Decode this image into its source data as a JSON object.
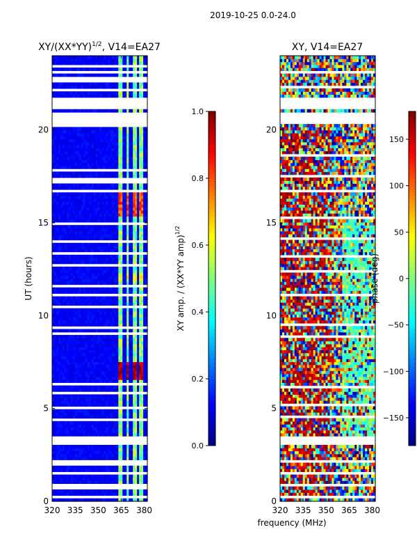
{
  "suptitle": "2019-10-25 0.0-24.0",
  "colors": {
    "jet": [
      "#00007f",
      "#0000ff",
      "#007fff",
      "#00ffff",
      "#7fff7f",
      "#ffff00",
      "#ff7f00",
      "#ff0000",
      "#7f0000"
    ],
    "gap": "#ffffff",
    "axis": "#000000"
  },
  "chart_data": [
    {
      "type": "heatmap",
      "title_main": "XY/(XX*YY)",
      "title_sup": "1/2",
      "title_tail": ", V14=EA27",
      "xlabel": "frequency (MHz)",
      "ylabel": "UT (hours)",
      "xlim": [
        320,
        382
      ],
      "ylim": [
        0,
        24
      ],
      "xticks": [
        "320",
        "335",
        "350",
        "365",
        "380"
      ],
      "xtick_values": [
        320,
        335,
        350,
        365,
        380
      ],
      "yticks": [
        "0",
        "5",
        "10",
        "15",
        "20"
      ],
      "ytick_values": [
        0,
        5,
        10,
        15,
        20
      ],
      "value_range": [
        0,
        1
      ],
      "background_value": 0.12,
      "bright_bands_mhz": [
        [
          363,
          366
        ],
        [
          368,
          370
        ],
        [
          373,
          375
        ],
        [
          377,
          379
        ]
      ],
      "bright_band_value": 0.5,
      "hot_blocks": [
        {
          "ut": [
            6.6,
            7.5
          ],
          "mhz": [
            363,
            380
          ],
          "value": 0.95
        },
        {
          "ut": [
            15.3,
            16.6
          ],
          "mhz": [
            363,
            380
          ],
          "value": 0.8
        },
        {
          "ut": [
            11.8,
            12.3
          ],
          "mhz": [
            363,
            380
          ],
          "value": 0.62
        }
      ],
      "gap_intervals_ut": [
        [
          0.1,
          0.3
        ],
        [
          0.7,
          0.9
        ],
        [
          1.4,
          1.55
        ],
        [
          2.0,
          2.2
        ],
        [
          3.0,
          3.5
        ],
        [
          4.4,
          4.55
        ],
        [
          5.0,
          5.1
        ],
        [
          5.7,
          5.85
        ],
        [
          6.3,
          6.45
        ],
        [
          8.9,
          9.1
        ],
        [
          9.3,
          9.5
        ],
        [
          10.4,
          10.55
        ],
        [
          11.0,
          11.2
        ],
        [
          11.6,
          11.75
        ],
        [
          12.7,
          12.85
        ],
        [
          13.3,
          13.5
        ],
        [
          14.0,
          14.1
        ],
        [
          14.9,
          15.0
        ],
        [
          16.6,
          16.8
        ],
        [
          17.2,
          17.4
        ],
        [
          17.8,
          17.95
        ],
        [
          18.2,
          18.3
        ],
        [
          20.1,
          21.0
        ],
        [
          21.2,
          21.8
        ],
        [
          22.1,
          22.25
        ],
        [
          22.6,
          22.8
        ],
        [
          23.0,
          23.15
        ],
        [
          23.4,
          23.55
        ]
      ],
      "colorbar": {
        "label_main": "XY amp. / (XX*YY amp)",
        "label_sup": "1/2",
        "ticks": [
          "0.0",
          "0.2",
          "0.4",
          "0.6",
          "0.8",
          "1.0"
        ],
        "tick_values": [
          0,
          0.2,
          0.4,
          0.6,
          0.8,
          1.0
        ]
      }
    },
    {
      "type": "heatmap",
      "title_main": "XY, V14=EA27",
      "xlabel": "frequency (MHz)",
      "ylabel": "",
      "xlim": [
        320,
        382
      ],
      "ylim": [
        0,
        24
      ],
      "xticks": [
        "320",
        "335",
        "350",
        "365",
        "380"
      ],
      "xtick_values": [
        320,
        335,
        350,
        365,
        380
      ],
      "yticks": [
        "0",
        "5",
        "10",
        "15",
        "20"
      ],
      "ytick_values": [
        0,
        5,
        10,
        15,
        20
      ],
      "value_range": [
        -180,
        180
      ],
      "green_region": {
        "mhz": [
          360,
          382
        ],
        "ut": [
          3.5,
          15.5
        ],
        "value": -20
      },
      "red_region": {
        "mhz": [
          320,
          355
        ],
        "ut": [
          0,
          20
        ],
        "value": 160
      },
      "gap_intervals_ut": [
        [
          0.2,
          0.35
        ],
        [
          0.8,
          1.0
        ],
        [
          1.5,
          1.6
        ],
        [
          2.1,
          2.25
        ],
        [
          3.1,
          3.5
        ],
        [
          4.5,
          4.6
        ],
        [
          5.2,
          5.3
        ],
        [
          6.1,
          6.25
        ],
        [
          8.8,
          8.95
        ],
        [
          9.5,
          9.65
        ],
        [
          11.1,
          11.25
        ],
        [
          12.4,
          12.5
        ],
        [
          13.2,
          13.35
        ],
        [
          14.1,
          14.2
        ],
        [
          15.2,
          15.35
        ],
        [
          16.7,
          16.85
        ],
        [
          17.5,
          17.6
        ],
        [
          18.6,
          18.75
        ],
        [
          20.3,
          20.95
        ],
        [
          21.2,
          21.8
        ],
        [
          22.2,
          22.35
        ],
        [
          23.0,
          23.15
        ]
      ],
      "colorbar": {
        "label": "phase (deg)",
        "ticks": [
          "−150",
          "−100",
          "−50",
          "0",
          "50",
          "100",
          "150"
        ],
        "tick_values": [
          -150,
          -100,
          -50,
          0,
          50,
          100,
          150
        ]
      }
    }
  ]
}
